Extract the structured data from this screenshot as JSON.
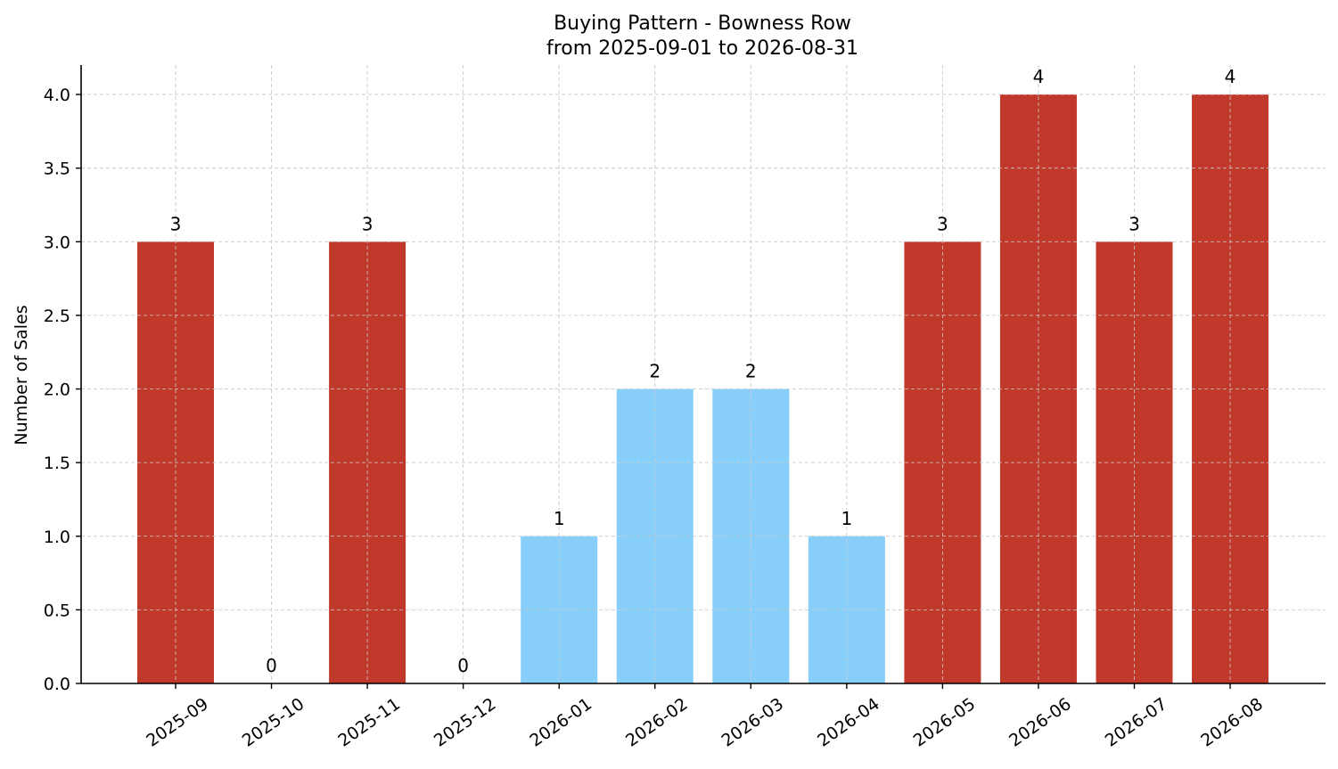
{
  "chart_data": {
    "type": "bar",
    "title": "Buying Pattern - Bowness Row",
    "subtitle": "from 2025-09-01 to 2026-08-31",
    "xlabel": "",
    "ylabel": "Number of Sales",
    "categories": [
      "2025-09",
      "2025-10",
      "2025-11",
      "2025-12",
      "2026-01",
      "2026-02",
      "2026-03",
      "2026-04",
      "2026-05",
      "2026-06",
      "2026-07",
      "2026-08"
    ],
    "values": [
      3,
      0,
      3,
      0,
      1,
      2,
      2,
      1,
      3,
      4,
      3,
      4
    ],
    "value_labels": [
      "3",
      "0",
      "3",
      "0",
      "1",
      "2",
      "2",
      "1",
      "3",
      "4",
      "3",
      "4"
    ],
    "bar_colors": [
      "#c0392b",
      "#c0392b",
      "#c0392b",
      "#c0392b",
      "#87cefa",
      "#87cefa",
      "#87cefa",
      "#87cefa",
      "#c0392b",
      "#c0392b",
      "#c0392b",
      "#c0392b"
    ],
    "ylim": [
      0,
      4.2
    ],
    "yticks": [
      0.0,
      0.5,
      1.0,
      1.5,
      2.0,
      2.5,
      3.0,
      3.5,
      4.0
    ],
    "ytick_labels": [
      "0.0",
      "0.5",
      "1.0",
      "1.5",
      "2.0",
      "2.5",
      "3.0",
      "3.5",
      "4.0"
    ],
    "grid": true,
    "legend": "none"
  }
}
